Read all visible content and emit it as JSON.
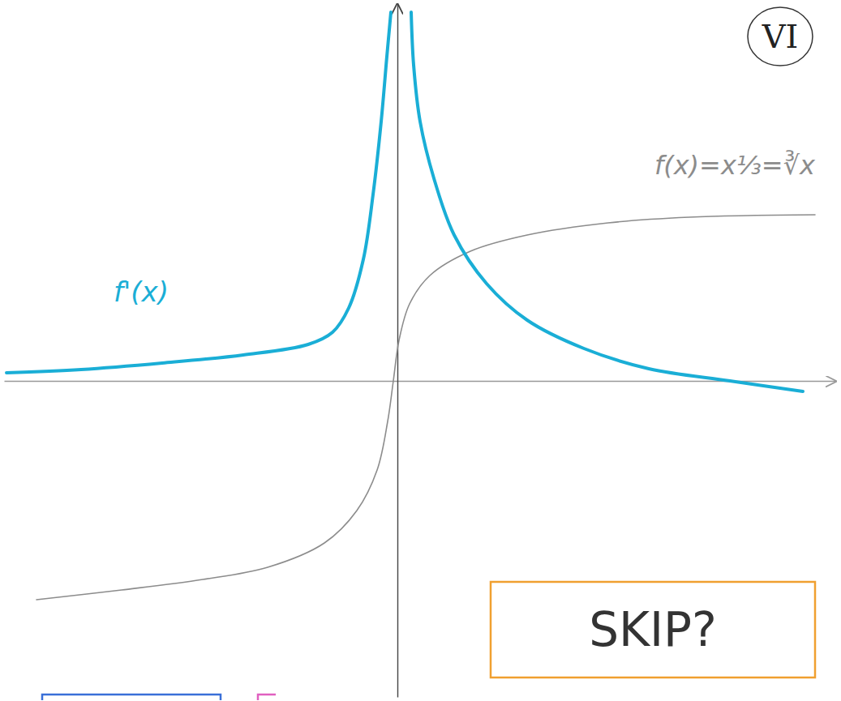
{
  "chart_data": {
    "type": "line",
    "series": [
      {
        "name": "f(x)=x⅓=∛x",
        "color": "#8c8c8c",
        "x": [
          -4.45,
          -3.4,
          -2.4,
          -1.6,
          -0.9,
          -0.5,
          -0.25,
          -0.12,
          -0.05,
          0.02,
          0.15,
          0.4,
          0.9,
          1.6,
          2.6,
          3.6,
          5.15
        ],
        "values": [
          -2.7,
          -2.58,
          -2.45,
          -2.3,
          -2.0,
          -1.6,
          -1.1,
          -0.5,
          0,
          0.5,
          0.95,
          1.3,
          1.6,
          1.8,
          1.95,
          2.02,
          2.05
        ]
      },
      {
        "name": "f'(x)",
        "color": "#1aaed6",
        "x": [
          -4.82,
          -3.9,
          -2.9,
          -1.9,
          -1.1,
          -0.8,
          -0.6,
          -0.42,
          -0.3,
          -0.2,
          -0.13,
          -0.08,
          0,
          0.17,
          0.2,
          0.28,
          0.45,
          0.7,
          1.1,
          1.6,
          2.3,
          3.1,
          4.1,
          5.0
        ],
        "values": [
          0.1,
          0.14,
          0.22,
          0.32,
          0.45,
          0.6,
          0.9,
          1.5,
          2.3,
          3.2,
          4.0,
          4.55,
          null,
          4.55,
          3.9,
          3.2,
          2.5,
          1.8,
          1.2,
          0.75,
          0.4,
          0.15,
          0.0,
          -0.13
        ]
      }
    ],
    "xlim": [
      -4.85,
      5.4
    ],
    "ylim": [
      -3.9,
      4.65
    ],
    "xticks": [],
    "yticks": [],
    "tick_labels": false,
    "annotations": [
      "VI",
      "SKIP?"
    ]
  }
}
